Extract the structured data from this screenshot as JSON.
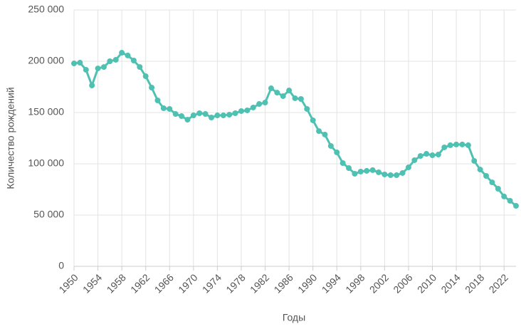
{
  "chart_data": {
    "type": "line",
    "x_label": "Годы",
    "y_label": "Количество рождений",
    "x": [
      1950,
      1951,
      1952,
      1953,
      1954,
      1955,
      1956,
      1957,
      1958,
      1959,
      1960,
      1961,
      1962,
      1963,
      1964,
      1965,
      1966,
      1967,
      1968,
      1969,
      1970,
      1971,
      1972,
      1973,
      1974,
      1975,
      1976,
      1977,
      1978,
      1979,
      1980,
      1981,
      1982,
      1983,
      1984,
      1985,
      1986,
      1987,
      1988,
      1989,
      1990,
      1991,
      1992,
      1993,
      1994,
      1995,
      1996,
      1997,
      1998,
      1999,
      2000,
      2001,
      2002,
      2003,
      2004,
      2005,
      2006,
      2007,
      2008,
      2009,
      2010,
      2011,
      2012,
      2013,
      2014,
      2015,
      2016,
      2017,
      2018,
      2019,
      2020,
      2021,
      2022,
      2023,
      2024
    ],
    "series": [
      {
        "color": "#4fc1b2",
        "values": [
          197900,
          198600,
          191700,
          176400,
          193000,
          194400,
          200000,
          201400,
          208300,
          205600,
          200700,
          194400,
          185400,
          174300,
          161800,
          154200,
          153500,
          148600,
          146500,
          143000,
          147200,
          149300,
          148600,
          145100,
          147200,
          147200,
          147900,
          149300,
          151400,
          152100,
          154900,
          158300,
          159700,
          173600,
          169400,
          166000,
          171500,
          163900,
          163200,
          153500,
          142400,
          131900,
          128500,
          117400,
          111100,
          100700,
          95800,
          90300,
          92400,
          93100,
          93800,
          91700,
          89600,
          88900,
          88900,
          91000,
          96500,
          103500,
          107600,
          109700,
          108300,
          109000,
          116000,
          118100,
          118800,
          118800,
          118100,
          102800,
          94400,
          88200,
          81900,
          75700,
          68100,
          63900,
          59000
        ]
      }
    ],
    "xlim": [
      1950,
      2024
    ],
    "xticks": [
      1950,
      1954,
      1958,
      1962,
      1966,
      1970,
      1974,
      1978,
      1982,
      1986,
      1990,
      1994,
      1998,
      2002,
      2006,
      2010,
      2014,
      2018,
      2022
    ],
    "ylim": [
      0,
      250000
    ],
    "yticks": [
      0,
      {
        "value": 50000,
        "label": "50 000"
      },
      {
        "value": 100000,
        "label": "100 000"
      },
      {
        "value": 150000,
        "label": "150 000"
      },
      {
        "value": 200000,
        "label": "200 000"
      },
      {
        "value": 250000,
        "label": "250 000"
      }
    ],
    "grid": true
  }
}
